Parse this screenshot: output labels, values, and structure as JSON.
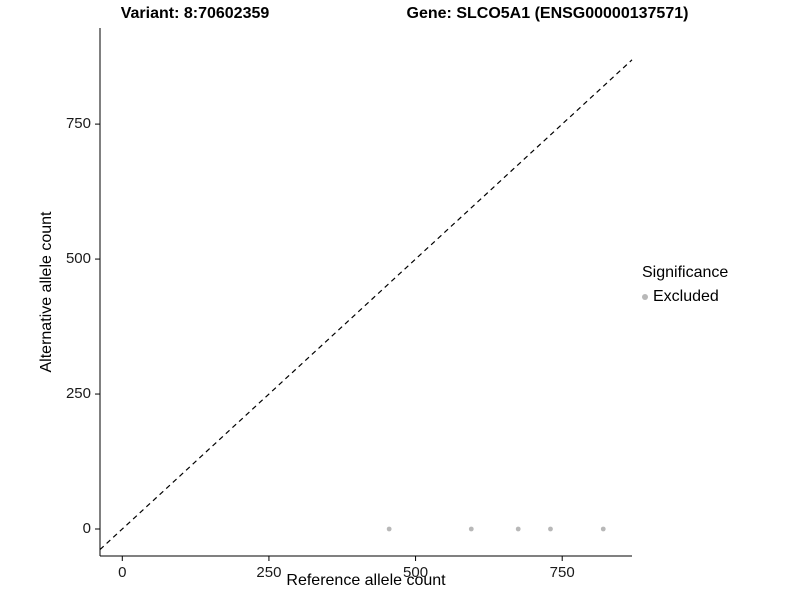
{
  "chart_data": {
    "type": "scatter",
    "title_left": "Variant: 8:70602359",
    "title_right": "Gene: SLCO5A1 (ENSG00000137571)",
    "xlabel": "Reference allele count",
    "ylabel": "Alternative allele count",
    "xlim": [
      -38,
      869
    ],
    "ylim": [
      -50,
      928
    ],
    "x_ticks": [
      0,
      250,
      500,
      750
    ],
    "y_ticks": [
      0,
      250,
      500,
      750
    ],
    "grid": false,
    "axis_color": "#000000",
    "legend": {
      "title": "Significance",
      "position": "right",
      "entries": [
        {
          "label": "Excluded",
          "color": "#b8b8b8"
        }
      ]
    },
    "series": [
      {
        "name": "Excluded",
        "color": "#b8b8b8",
        "points": [
          [
            455,
            0
          ],
          [
            595,
            0
          ],
          [
            675,
            0
          ],
          [
            730,
            0
          ],
          [
            820,
            0
          ]
        ]
      }
    ],
    "reference_line": {
      "type": "identity",
      "style": "dashed",
      "color": "#000000"
    }
  }
}
